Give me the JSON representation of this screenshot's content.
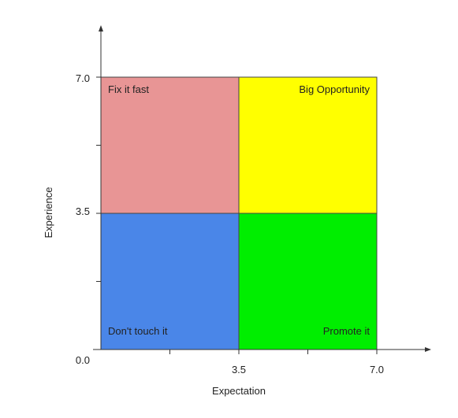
{
  "chart_data": {
    "type": "heatmap",
    "xlabel": "Expectation",
    "ylabel": "Experience",
    "xlim": [
      0,
      7.0
    ],
    "ylim": [
      0,
      7.0
    ],
    "x_tick_labels": [
      "3.5",
      "7.0"
    ],
    "y_tick_labels": [
      "0.0",
      "3.5",
      "7.0"
    ],
    "quadrants": [
      {
        "label": "Fix it fast",
        "x": [
          0,
          3.5
        ],
        "y": [
          3.5,
          7.0
        ],
        "color": "#e89595",
        "label_align": "left",
        "label_pos": "top"
      },
      {
        "label": "Big Opportunity",
        "x": [
          3.5,
          7.0
        ],
        "y": [
          3.5,
          7.0
        ],
        "color": "#ffff00",
        "label_align": "right",
        "label_pos": "top"
      },
      {
        "label": "Don't touch it",
        "x": [
          0,
          3.5
        ],
        "y": [
          0,
          3.5
        ],
        "color": "#4a86e8",
        "label_align": "left",
        "label_pos": "bottom"
      },
      {
        "label": "Promote it",
        "x": [
          3.5,
          7.0
        ],
        "y": [
          0,
          3.5
        ],
        "color": "#00ee00",
        "label_align": "right",
        "label_pos": "bottom"
      }
    ],
    "grid": false
  }
}
